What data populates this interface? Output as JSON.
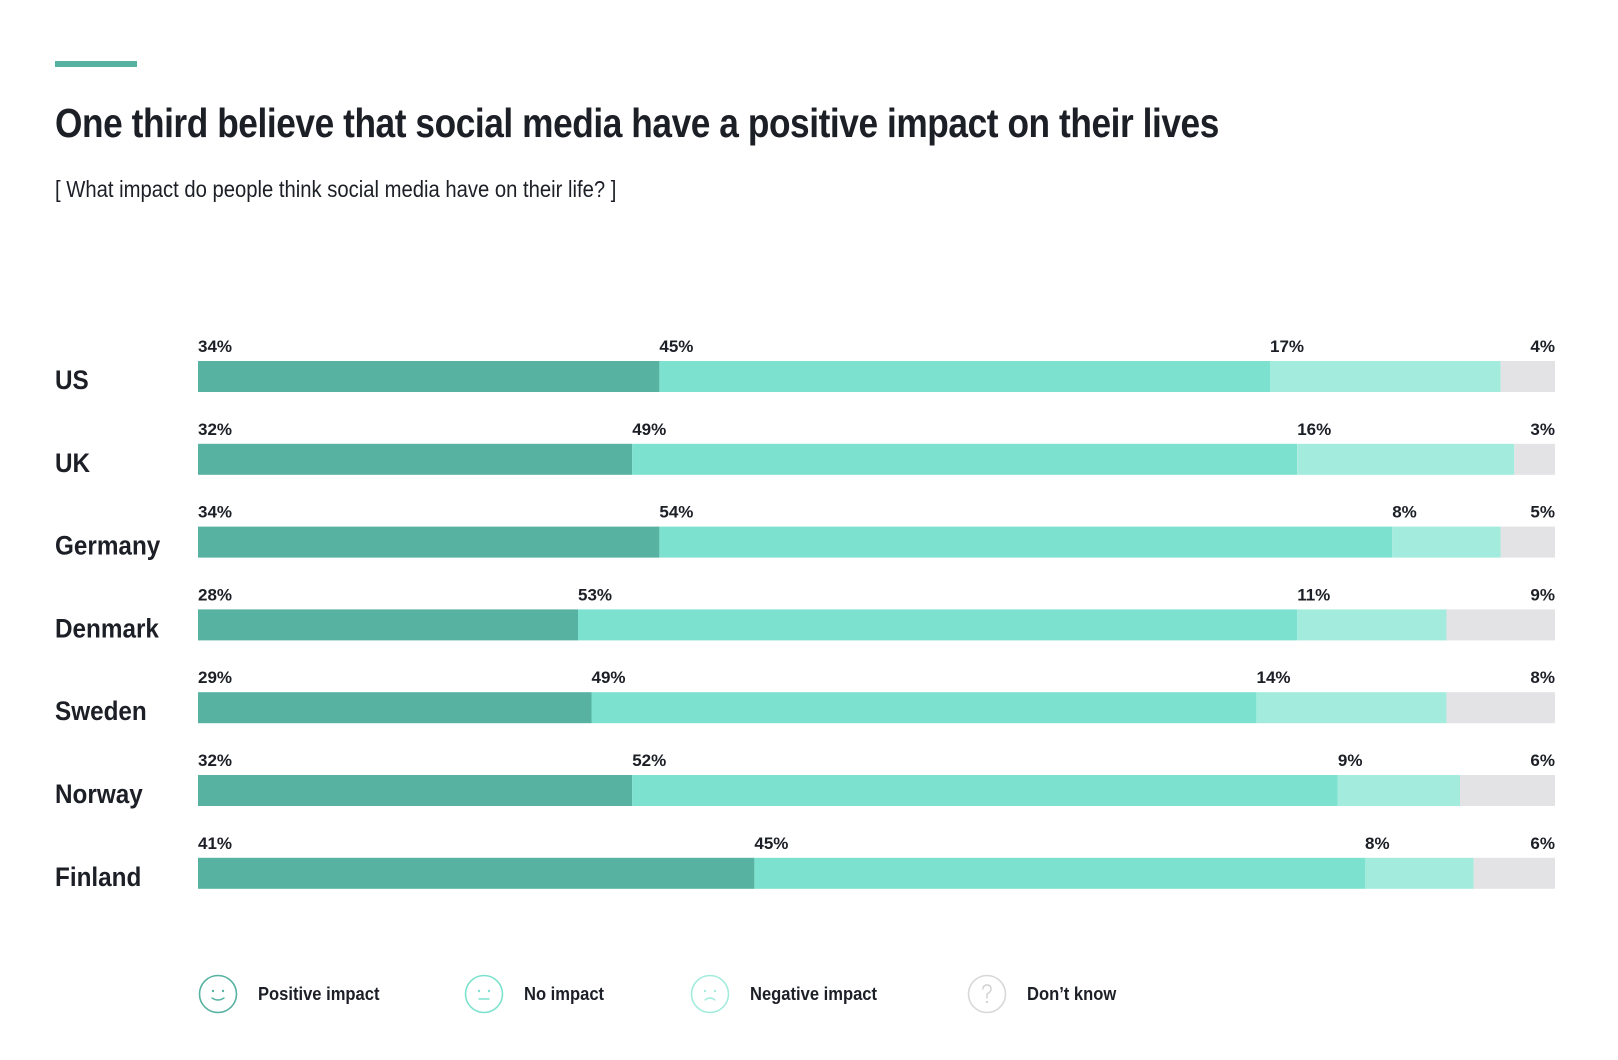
{
  "header": {
    "title": "One third believe that social media have a positive impact on their lives",
    "subtitle": "[ What impact do people think social media have on their life? ]"
  },
  "colors": {
    "accent": "#57b2a2",
    "positive": "#57b2a2",
    "no_impact": "#7de1cf",
    "negative": "#a3ecdd",
    "dont_know": "#e3e3e5",
    "text": "#1c1f26"
  },
  "legend": [
    {
      "label": "Positive impact",
      "icon": "smiley-happy-icon"
    },
    {
      "label": "No impact",
      "icon": "smiley-neutral-icon"
    },
    {
      "label": "Negative impact",
      "icon": "smiley-sad-icon"
    },
    {
      "label": "Don’t know",
      "icon": "question-mark-icon"
    }
  ],
  "chart_data": {
    "type": "bar",
    "orientation": "horizontal",
    "stacked": true,
    "title": "One third believe that social media have a positive impact on their lives",
    "subtitle": "[ What impact do people think social media have on their life? ]",
    "xlabel": "",
    "ylabel": "",
    "unit": "%",
    "xlim": [
      0,
      100
    ],
    "grid": false,
    "legend_position": "bottom",
    "categories": [
      "US",
      "UK",
      "Germany",
      "Denmark",
      "Sweden",
      "Norway",
      "Finland"
    ],
    "series": [
      {
        "name": "Positive impact",
        "values": [
          34,
          32,
          34,
          28,
          29,
          32,
          41
        ]
      },
      {
        "name": "No impact",
        "values": [
          45,
          49,
          54,
          53,
          49,
          52,
          45
        ]
      },
      {
        "name": "Negative impact",
        "values": [
          17,
          16,
          8,
          11,
          14,
          9,
          8
        ]
      },
      {
        "name": "Don’t know",
        "values": [
          4,
          3,
          5,
          9,
          8,
          6,
          6
        ]
      }
    ]
  }
}
